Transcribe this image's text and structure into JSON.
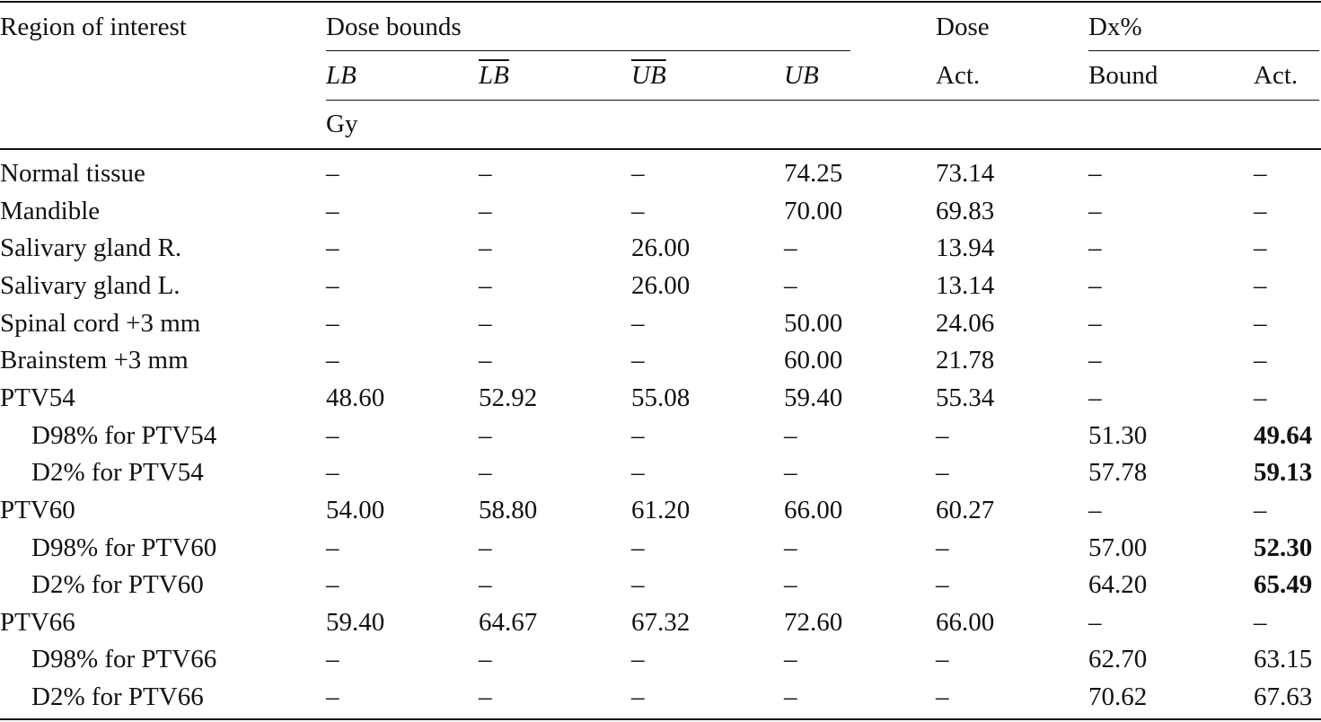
{
  "table": {
    "header": {
      "groups": [
        "Region of interest",
        "Dose bounds",
        "Dose",
        "Dx%"
      ],
      "columns": [
        "LB",
        "LB",
        "UB",
        "UB",
        "Act.",
        "Bound",
        "Act."
      ],
      "unit": "Gy"
    },
    "rows": [
      {
        "label": "Normal tissue",
        "cells": [
          "–",
          "–",
          "–",
          "74.25",
          "73.14",
          "–",
          "–"
        ]
      },
      {
        "label": "Mandible",
        "cells": [
          "–",
          "–",
          "–",
          "70.00",
          "69.83",
          "–",
          "–"
        ]
      },
      {
        "label": "Salivary gland R.",
        "cells": [
          "–",
          "–",
          "26.00",
          "–",
          "13.94",
          "–",
          "–"
        ]
      },
      {
        "label": "Salivary gland L.",
        "cells": [
          "–",
          "–",
          "26.00",
          "–",
          "13.14",
          "–",
          "–"
        ]
      },
      {
        "label": "Spinal cord +3 mm",
        "cells": [
          "–",
          "–",
          "–",
          "50.00",
          "24.06",
          "–",
          "–"
        ]
      },
      {
        "label": "Brainstem +3 mm",
        "cells": [
          "–",
          "–",
          "–",
          "60.00",
          "21.78",
          "–",
          "–"
        ]
      },
      {
        "label": "PTV54",
        "cells": [
          "48.60",
          "52.92",
          "55.08",
          "59.40",
          "55.34",
          "–",
          "–"
        ]
      },
      {
        "label": "D98% for PTV54",
        "indent": true,
        "cells": [
          "–",
          "–",
          "–",
          "–",
          "–",
          "51.30",
          {
            "text": "49.64",
            "bold": true
          }
        ]
      },
      {
        "label": "D2% for PTV54",
        "indent": true,
        "cells": [
          "–",
          "–",
          "–",
          "–",
          "–",
          "57.78",
          {
            "text": "59.13",
            "bold": true
          }
        ]
      },
      {
        "label": "PTV60",
        "cells": [
          "54.00",
          "58.80",
          "61.20",
          "66.00",
          "60.27",
          "–",
          "–"
        ]
      },
      {
        "label": "D98% for PTV60",
        "indent": true,
        "cells": [
          "–",
          "–",
          "–",
          "–",
          "–",
          "57.00",
          {
            "text": "52.30",
            "bold": true
          }
        ]
      },
      {
        "label": "D2% for PTV60",
        "indent": true,
        "cells": [
          "–",
          "–",
          "–",
          "–",
          "–",
          "64.20",
          {
            "text": "65.49",
            "bold": true
          }
        ]
      },
      {
        "label": "PTV66",
        "cells": [
          "59.40",
          "64.67",
          "67.32",
          "72.60",
          "66.00",
          "–",
          "–"
        ]
      },
      {
        "label": "D98% for PTV66",
        "indent": true,
        "cells": [
          "–",
          "–",
          "–",
          "–",
          "–",
          "62.70",
          "63.15"
        ]
      },
      {
        "label": "D2% for PTV66",
        "indent": true,
        "cells": [
          "–",
          "–",
          "–",
          "–",
          "–",
          "70.62",
          "67.63"
        ]
      }
    ]
  }
}
